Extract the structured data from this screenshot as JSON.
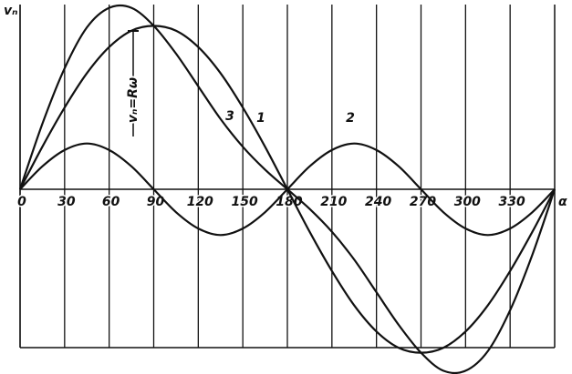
{
  "chart_data": {
    "type": "line",
    "y_label": "vₙ",
    "x_label": "α",
    "annotation": "vₙ=Rω",
    "x": [
      0,
      15,
      30,
      45,
      60,
      75,
      90,
      105,
      120,
      135,
      150,
      165,
      180,
      195,
      210,
      225,
      240,
      255,
      270,
      285,
      300,
      315,
      330,
      345,
      360
    ],
    "series": [
      {
        "name": "1",
        "color": "#111",
        "values": [
          0,
          0.26,
          0.5,
          0.71,
          0.87,
          0.97,
          1,
          0.97,
          0.87,
          0.71,
          0.5,
          0.26,
          0,
          -0.26,
          -0.5,
          -0.71,
          -0.87,
          -0.97,
          -1,
          -0.97,
          -0.87,
          -0.71,
          -0.5,
          -0.26,
          0
        ]
      },
      {
        "name": "2",
        "color": "#111",
        "values": [
          0,
          0.14,
          0.24,
          0.28,
          0.24,
          0.14,
          0,
          -0.14,
          -0.24,
          -0.28,
          -0.24,
          -0.14,
          0,
          0.14,
          0.24,
          0.28,
          0.24,
          0.14,
          0,
          -0.14,
          -0.24,
          -0.28,
          -0.24,
          -0.14,
          0
        ]
      },
      {
        "name": "3",
        "color": "#111",
        "values": [
          0,
          0.4,
          0.74,
          0.99,
          1.11,
          1.11,
          1,
          0.83,
          0.63,
          0.43,
          0.26,
          0.12,
          0,
          -0.12,
          -0.26,
          -0.43,
          -0.63,
          -0.83,
          -1,
          -1.11,
          -1.11,
          -0.99,
          -0.74,
          -0.4,
          0
        ]
      }
    ],
    "xlim": [
      0,
      360
    ],
    "xticks": [
      0,
      30,
      60,
      90,
      120,
      150,
      180,
      210,
      240,
      270,
      300,
      330
    ],
    "ylim": [
      -1.13,
      1.13
    ],
    "grid": true
  }
}
